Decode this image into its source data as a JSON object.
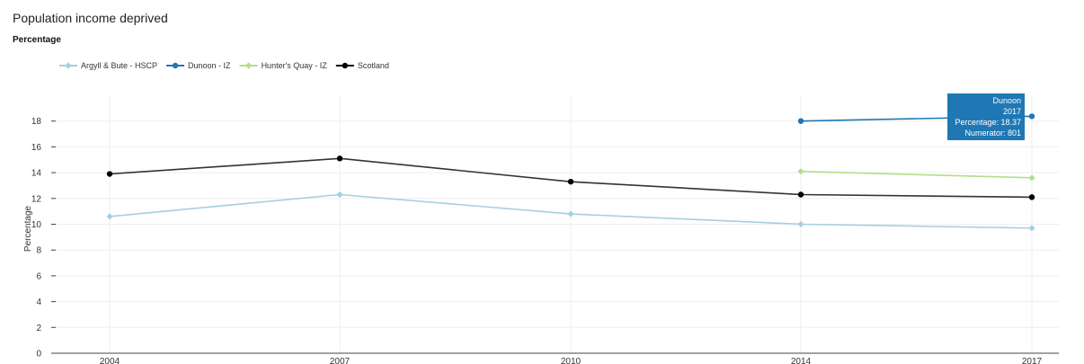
{
  "title": "Population income deprived",
  "subtitle": "Percentage",
  "chart_data": {
    "type": "line",
    "title": "Population income deprived",
    "subtitle": "Percentage",
    "ylabel": "Percentage",
    "xlabel": "",
    "x": [
      "2004",
      "2007",
      "2010",
      "2014",
      "2017"
    ],
    "ylim": [
      0,
      20
    ],
    "yticks": [
      0,
      2,
      4,
      6,
      8,
      10,
      12,
      14,
      16,
      18
    ],
    "grid": true,
    "legend_placement": "top-left",
    "series": [
      {
        "name": "Argyll & Bute - HSCP",
        "color": "#a6cee3",
        "marker": "diamond",
        "values": [
          10.6,
          12.3,
          10.8,
          10.0,
          9.7
        ]
      },
      {
        "name": "Dunoon - IZ",
        "color": "#1f78b4",
        "marker": "circle",
        "values": [
          null,
          null,
          null,
          18.0,
          18.37
        ]
      },
      {
        "name": "Hunter's Quay - IZ",
        "color": "#b2df8a",
        "marker": "diamond",
        "values": [
          null,
          null,
          null,
          14.1,
          13.6
        ]
      },
      {
        "name": "Scotland",
        "color": "#000000",
        "marker": "circle",
        "values": [
          13.9,
          15.1,
          13.3,
          12.3,
          12.1
        ]
      }
    ],
    "tooltip": {
      "series_index": 1,
      "point_index": 4,
      "lines": [
        "Dunoon",
        "2017",
        "Percentage: 18.37",
        "Numerator: 801"
      ],
      "background": "#1f78b4"
    }
  }
}
